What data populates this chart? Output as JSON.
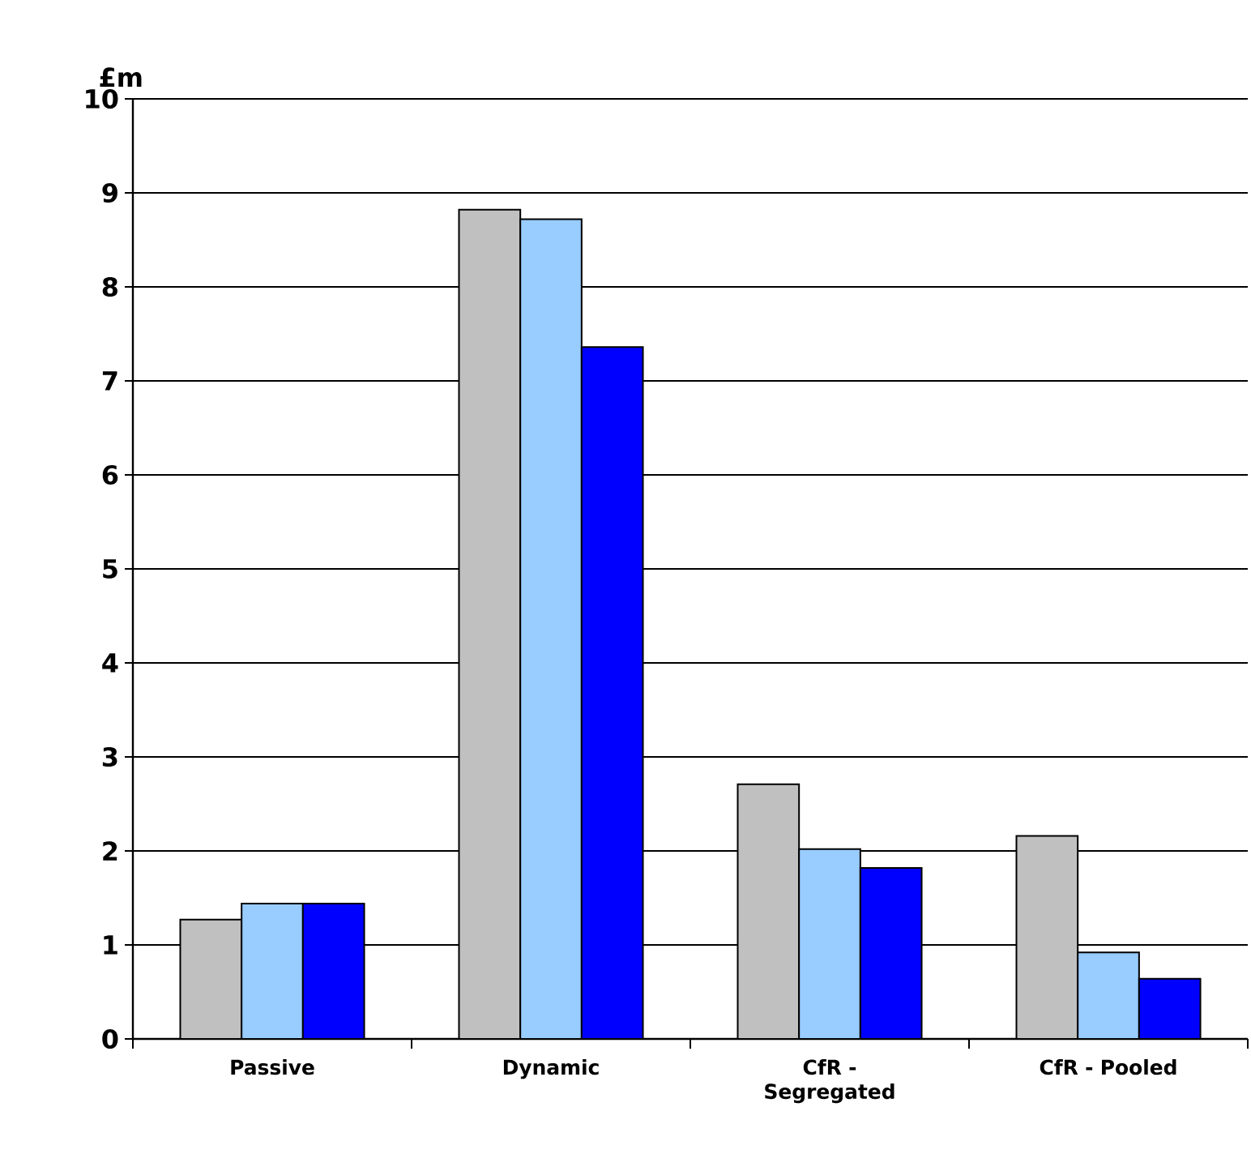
{
  "chart_data": {
    "type": "bar",
    "ylabel": "£m",
    "categories": [
      "Passive",
      "Dynamic",
      "CfR - Segregated",
      "CfR - Pooled"
    ],
    "series": [
      {
        "color": "#c0c0c0",
        "values": [
          1.27,
          8.82,
          2.71,
          2.16
        ]
      },
      {
        "color": "#99ccff",
        "values": [
          1.44,
          8.72,
          2.02,
          0.92
        ]
      },
      {
        "color": "#0000ff",
        "values": [
          1.44,
          7.36,
          1.82,
          0.64
        ]
      }
    ],
    "ylim": [
      0,
      10
    ],
    "yticks": [
      0,
      1,
      2,
      3,
      4,
      5,
      6,
      7,
      8,
      9,
      10
    ],
    "grid": "y"
  }
}
